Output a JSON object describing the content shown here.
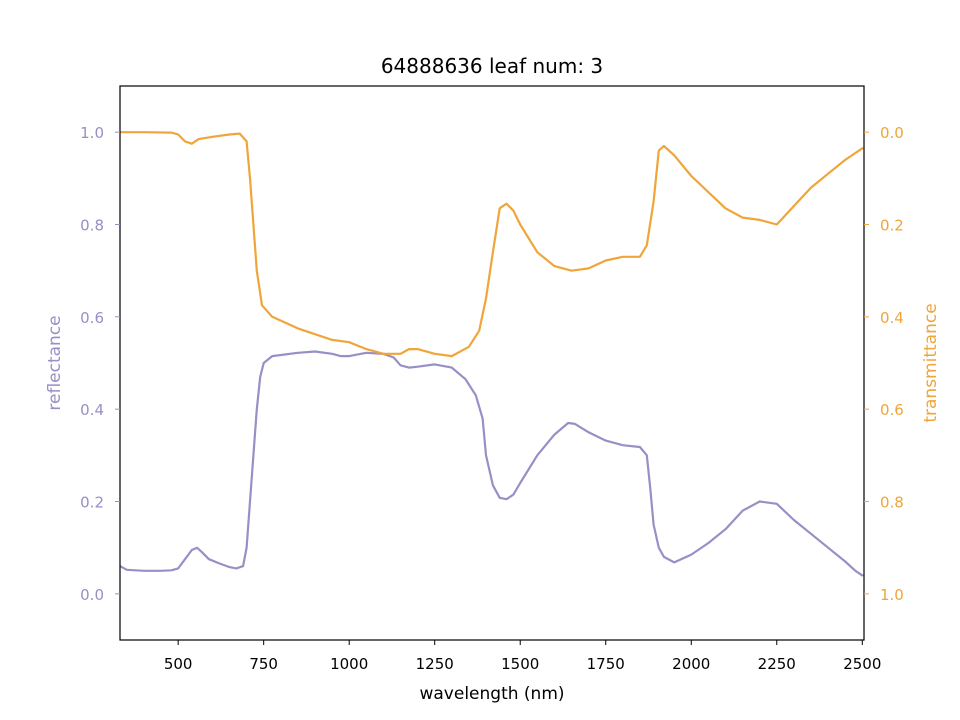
{
  "chart_data": {
    "type": "line",
    "title": "64888636 leaf num: 3",
    "xlabel": "wavelength (nm)",
    "ylabel_left": "reflectance",
    "ylabel_right": "transmittance",
    "xlim": [
      330,
      2505
    ],
    "ylim_left": [
      -0.1,
      1.1
    ],
    "ylim_right": [
      1.1,
      -0.1
    ],
    "right_axis_inverted": true,
    "grid": false,
    "x_ticks": [
      500,
      750,
      1000,
      1250,
      1500,
      1750,
      2000,
      2250,
      2500
    ],
    "x_tick_labels": [
      "500",
      "750",
      "1000",
      "1250",
      "1500",
      "1750",
      "2000",
      "2250",
      "2500"
    ],
    "left_ticks": [
      0.0,
      0.2,
      0.4,
      0.6,
      0.8,
      1.0
    ],
    "left_tick_labels": [
      "0.0",
      "0.2",
      "0.4",
      "0.6",
      "0.8",
      "1.0"
    ],
    "right_ticks": [
      0.0,
      0.2,
      0.4,
      0.6,
      0.8,
      1.0
    ],
    "right_tick_labels": [
      "0.0",
      "0.2",
      "0.4",
      "0.6",
      "0.8",
      "1.0"
    ],
    "colors": {
      "reflectance": "#9690c6",
      "transmittance": "#f0a53a",
      "axes": "#000000"
    },
    "series": [
      {
        "axis": "left",
        "color": "#9690c6",
        "points": [
          [
            330,
            0.06
          ],
          [
            350,
            0.052
          ],
          [
            400,
            0.05
          ],
          [
            450,
            0.05
          ],
          [
            480,
            0.051
          ],
          [
            500,
            0.055
          ],
          [
            520,
            0.075
          ],
          [
            540,
            0.095
          ],
          [
            555,
            0.1
          ],
          [
            570,
            0.09
          ],
          [
            590,
            0.075
          ],
          [
            620,
            0.066
          ],
          [
            650,
            0.058
          ],
          [
            670,
            0.055
          ],
          [
            690,
            0.06
          ],
          [
            700,
            0.1
          ],
          [
            710,
            0.2
          ],
          [
            720,
            0.3
          ],
          [
            730,
            0.4
          ],
          [
            740,
            0.47
          ],
          [
            750,
            0.5
          ],
          [
            775,
            0.515
          ],
          [
            850,
            0.522
          ],
          [
            900,
            0.525
          ],
          [
            950,
            0.52
          ],
          [
            975,
            0.515
          ],
          [
            1000,
            0.515
          ],
          [
            1050,
            0.522
          ],
          [
            1100,
            0.52
          ],
          [
            1130,
            0.512
          ],
          [
            1150,
            0.495
          ],
          [
            1175,
            0.49
          ],
          [
            1200,
            0.492
          ],
          [
            1250,
            0.497
          ],
          [
            1300,
            0.49
          ],
          [
            1340,
            0.465
          ],
          [
            1370,
            0.43
          ],
          [
            1390,
            0.38
          ],
          [
            1400,
            0.3
          ],
          [
            1420,
            0.235
          ],
          [
            1440,
            0.208
          ],
          [
            1460,
            0.205
          ],
          [
            1480,
            0.215
          ],
          [
            1500,
            0.24
          ],
          [
            1550,
            0.3
          ],
          [
            1600,
            0.345
          ],
          [
            1640,
            0.37
          ],
          [
            1660,
            0.368
          ],
          [
            1700,
            0.35
          ],
          [
            1750,
            0.332
          ],
          [
            1800,
            0.322
          ],
          [
            1850,
            0.318
          ],
          [
            1870,
            0.3
          ],
          [
            1880,
            0.23
          ],
          [
            1890,
            0.15
          ],
          [
            1905,
            0.1
          ],
          [
            1920,
            0.08
          ],
          [
            1950,
            0.068
          ],
          [
            2000,
            0.085
          ],
          [
            2050,
            0.11
          ],
          [
            2100,
            0.14
          ],
          [
            2150,
            0.18
          ],
          [
            2200,
            0.2
          ],
          [
            2250,
            0.195
          ],
          [
            2300,
            0.16
          ],
          [
            2350,
            0.13
          ],
          [
            2400,
            0.1
          ],
          [
            2450,
            0.07
          ],
          [
            2480,
            0.05
          ],
          [
            2500,
            0.04
          ]
        ]
      },
      {
        "axis": "right",
        "color": "#f0a53a",
        "points": [
          [
            330,
            0.0
          ],
          [
            400,
            0.0
          ],
          [
            480,
            0.001
          ],
          [
            500,
            0.005
          ],
          [
            520,
            0.02
          ],
          [
            540,
            0.025
          ],
          [
            560,
            0.015
          ],
          [
            600,
            0.01
          ],
          [
            650,
            0.005
          ],
          [
            680,
            0.003
          ],
          [
            700,
            0.02
          ],
          [
            710,
            0.1
          ],
          [
            720,
            0.2
          ],
          [
            730,
            0.3
          ],
          [
            745,
            0.375
          ],
          [
            775,
            0.4
          ],
          [
            850,
            0.425
          ],
          [
            950,
            0.45
          ],
          [
            1000,
            0.455
          ],
          [
            1050,
            0.47
          ],
          [
            1100,
            0.48
          ],
          [
            1150,
            0.48
          ],
          [
            1175,
            0.47
          ],
          [
            1200,
            0.47
          ],
          [
            1250,
            0.48
          ],
          [
            1300,
            0.485
          ],
          [
            1350,
            0.465
          ],
          [
            1380,
            0.43
          ],
          [
            1400,
            0.36
          ],
          [
            1420,
            0.26
          ],
          [
            1440,
            0.165
          ],
          [
            1460,
            0.155
          ],
          [
            1480,
            0.17
          ],
          [
            1500,
            0.2
          ],
          [
            1550,
            0.26
          ],
          [
            1600,
            0.29
          ],
          [
            1650,
            0.3
          ],
          [
            1700,
            0.295
          ],
          [
            1750,
            0.278
          ],
          [
            1800,
            0.27
          ],
          [
            1850,
            0.27
          ],
          [
            1870,
            0.245
          ],
          [
            1890,
            0.15
          ],
          [
            1905,
            0.04
          ],
          [
            1920,
            0.03
          ],
          [
            1950,
            0.05
          ],
          [
            2000,
            0.095
          ],
          [
            2050,
            0.13
          ],
          [
            2100,
            0.165
          ],
          [
            2150,
            0.185
          ],
          [
            2200,
            0.19
          ],
          [
            2250,
            0.2
          ],
          [
            2300,
            0.16
          ],
          [
            2350,
            0.12
          ],
          [
            2400,
            0.09
          ],
          [
            2450,
            0.06
          ],
          [
            2500,
            0.035
          ]
        ]
      }
    ]
  }
}
